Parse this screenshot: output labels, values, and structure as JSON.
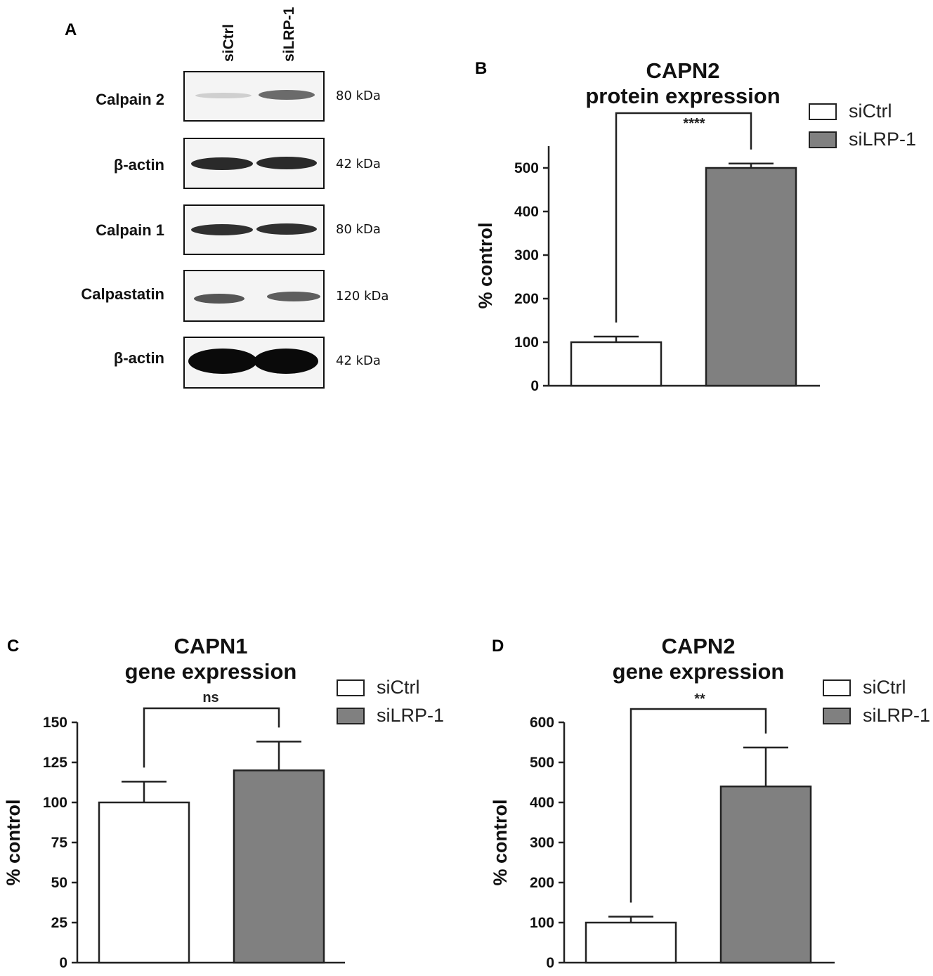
{
  "panel_letters": {
    "a": "A",
    "b": "B",
    "c": "C",
    "d": "D"
  },
  "western_blot": {
    "lanes": [
      "siCtrl",
      "siLRP-1"
    ],
    "rows": [
      {
        "protein": "Calpain 2",
        "mw": "80 kDa"
      },
      {
        "protein": "β-actin",
        "mw": "42 kDa"
      },
      {
        "protein": "Calpain 1",
        "mw": "80 kDa"
      },
      {
        "protein": "Calpastatin",
        "mw": "120 kDa"
      },
      {
        "protein": "β-actin",
        "mw": "42 kDa"
      }
    ]
  },
  "chart_data": [
    {
      "type": "bar",
      "title_lines": [
        "CAPN2",
        "protein expression"
      ],
      "categories": [
        "siCtrl",
        "siLRP-1"
      ],
      "values": [
        100,
        500
      ],
      "errors": [
        13,
        10
      ],
      "ylabel": "% control",
      "ylim": [
        0,
        550
      ],
      "yticks": [
        0,
        100,
        200,
        300,
        400,
        500
      ],
      "significance": "****",
      "legend": [
        "siCtrl",
        "siLRP-1"
      ],
      "legend_position": "top-right",
      "colors": [
        "#ffffff",
        "#808080"
      ],
      "grid": false
    },
    {
      "type": "bar",
      "title_lines": [
        "CAPN1",
        "gene expression"
      ],
      "categories": [
        "siCtrl",
        "siLRP-1"
      ],
      "values": [
        100,
        120
      ],
      "errors": [
        13,
        18
      ],
      "ylabel": "% control",
      "ylim": [
        0,
        150
      ],
      "yticks": [
        0,
        25,
        50,
        75,
        100,
        125,
        150
      ],
      "significance": "ns",
      "legend": [
        "siCtrl",
        "siLRP-1"
      ],
      "legend_position": "top-right",
      "colors": [
        "#ffffff",
        "#808080"
      ],
      "grid": false
    },
    {
      "type": "bar",
      "title_lines": [
        "CAPN2",
        "gene expression"
      ],
      "categories": [
        "siCtrl",
        "siLRP-1"
      ],
      "values": [
        100,
        440
      ],
      "errors": [
        15,
        97
      ],
      "ylabel": "% control",
      "ylim": [
        0,
        600
      ],
      "yticks": [
        0,
        100,
        200,
        300,
        400,
        500,
        600
      ],
      "significance": "**",
      "legend": [
        "siCtrl",
        "siLRP-1"
      ],
      "legend_position": "top-right",
      "colors": [
        "#ffffff",
        "#808080"
      ],
      "grid": false
    }
  ]
}
